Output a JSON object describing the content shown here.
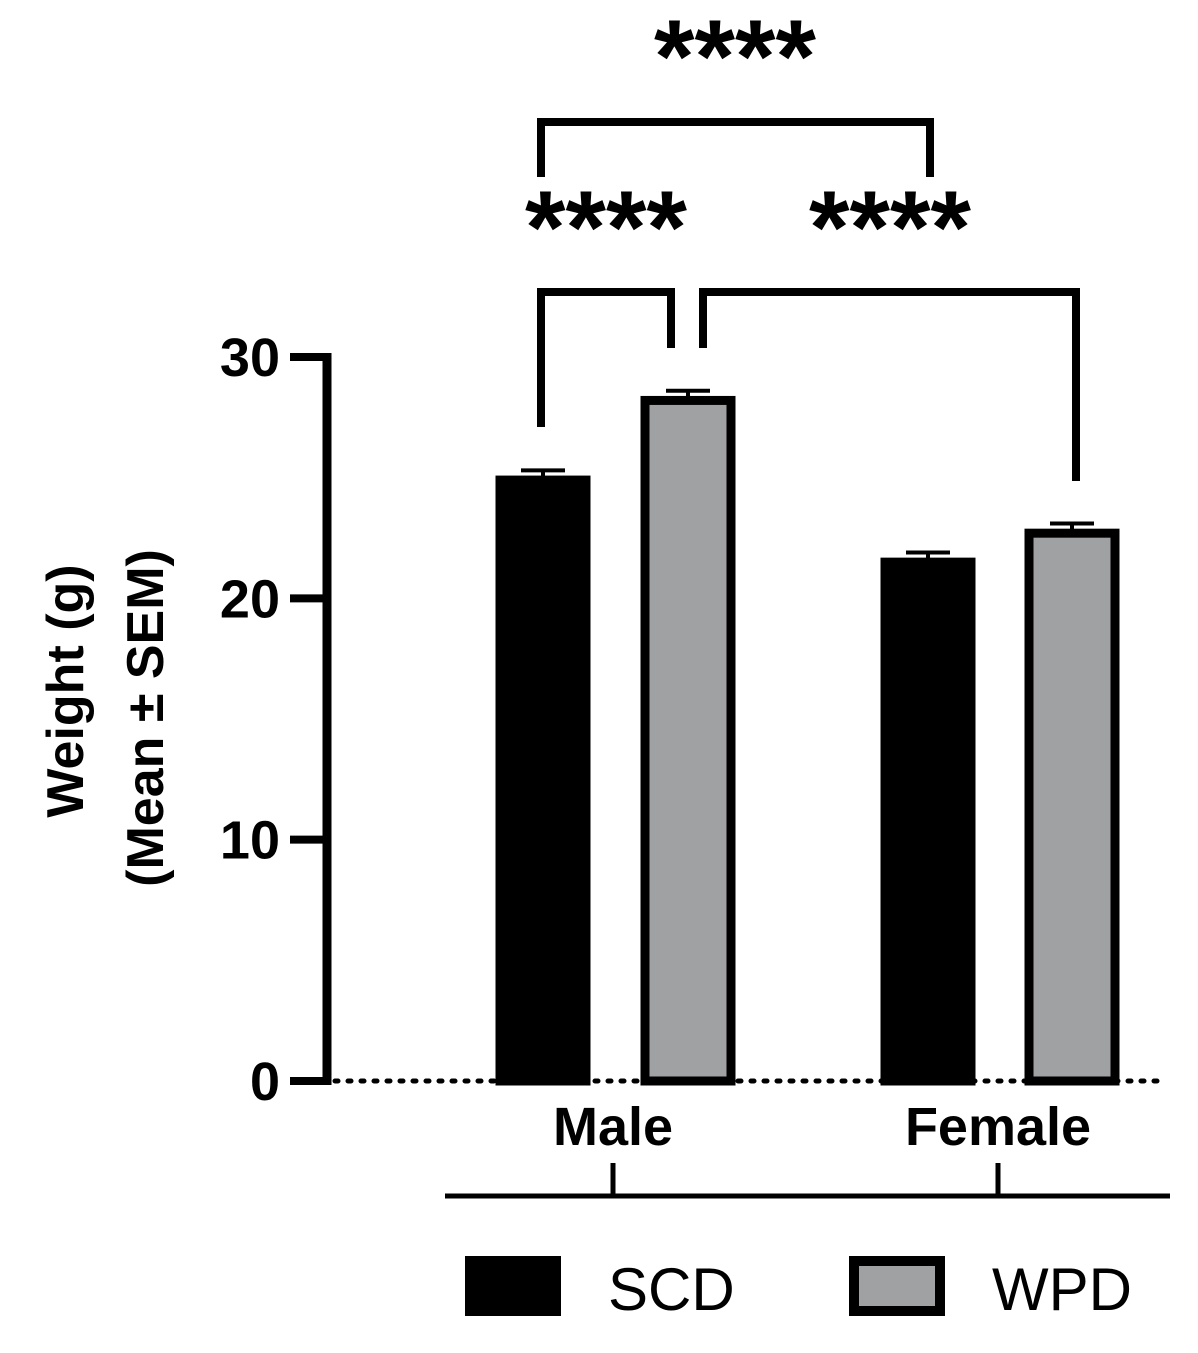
{
  "chart_data": {
    "type": "bar",
    "title": "",
    "xlabel": "",
    "ylabel_line1": "Weight (g)",
    "ylabel_line2": "(Mean ± SEM)",
    "ylim": [
      0,
      30
    ],
    "yticks": [
      "0",
      "10",
      "20",
      "30"
    ],
    "categories": [
      "Male",
      "Female"
    ],
    "series": [
      {
        "name": "SCD",
        "values": [
          24.9,
          21.5
        ],
        "sem": [
          0.4,
          0.4
        ],
        "fill": "#000000"
      },
      {
        "name": "WPD",
        "values": [
          28.2,
          22.7
        ],
        "sem": [
          0.4,
          0.4
        ],
        "fill": "#a0a1a3"
      }
    ],
    "significance": [
      {
        "label": "****",
        "from": "Male SCD",
        "to": "Male WPD"
      },
      {
        "label": "****",
        "from": "Male WPD",
        "to": "Female WPD"
      },
      {
        "label": "****",
        "from": "Male SCD",
        "to": "Female SCD"
      }
    ],
    "legend": {
      "placement": "bottom",
      "entries": [
        "SCD",
        "WPD"
      ]
    },
    "grid": false,
    "baseline": "dotted"
  }
}
